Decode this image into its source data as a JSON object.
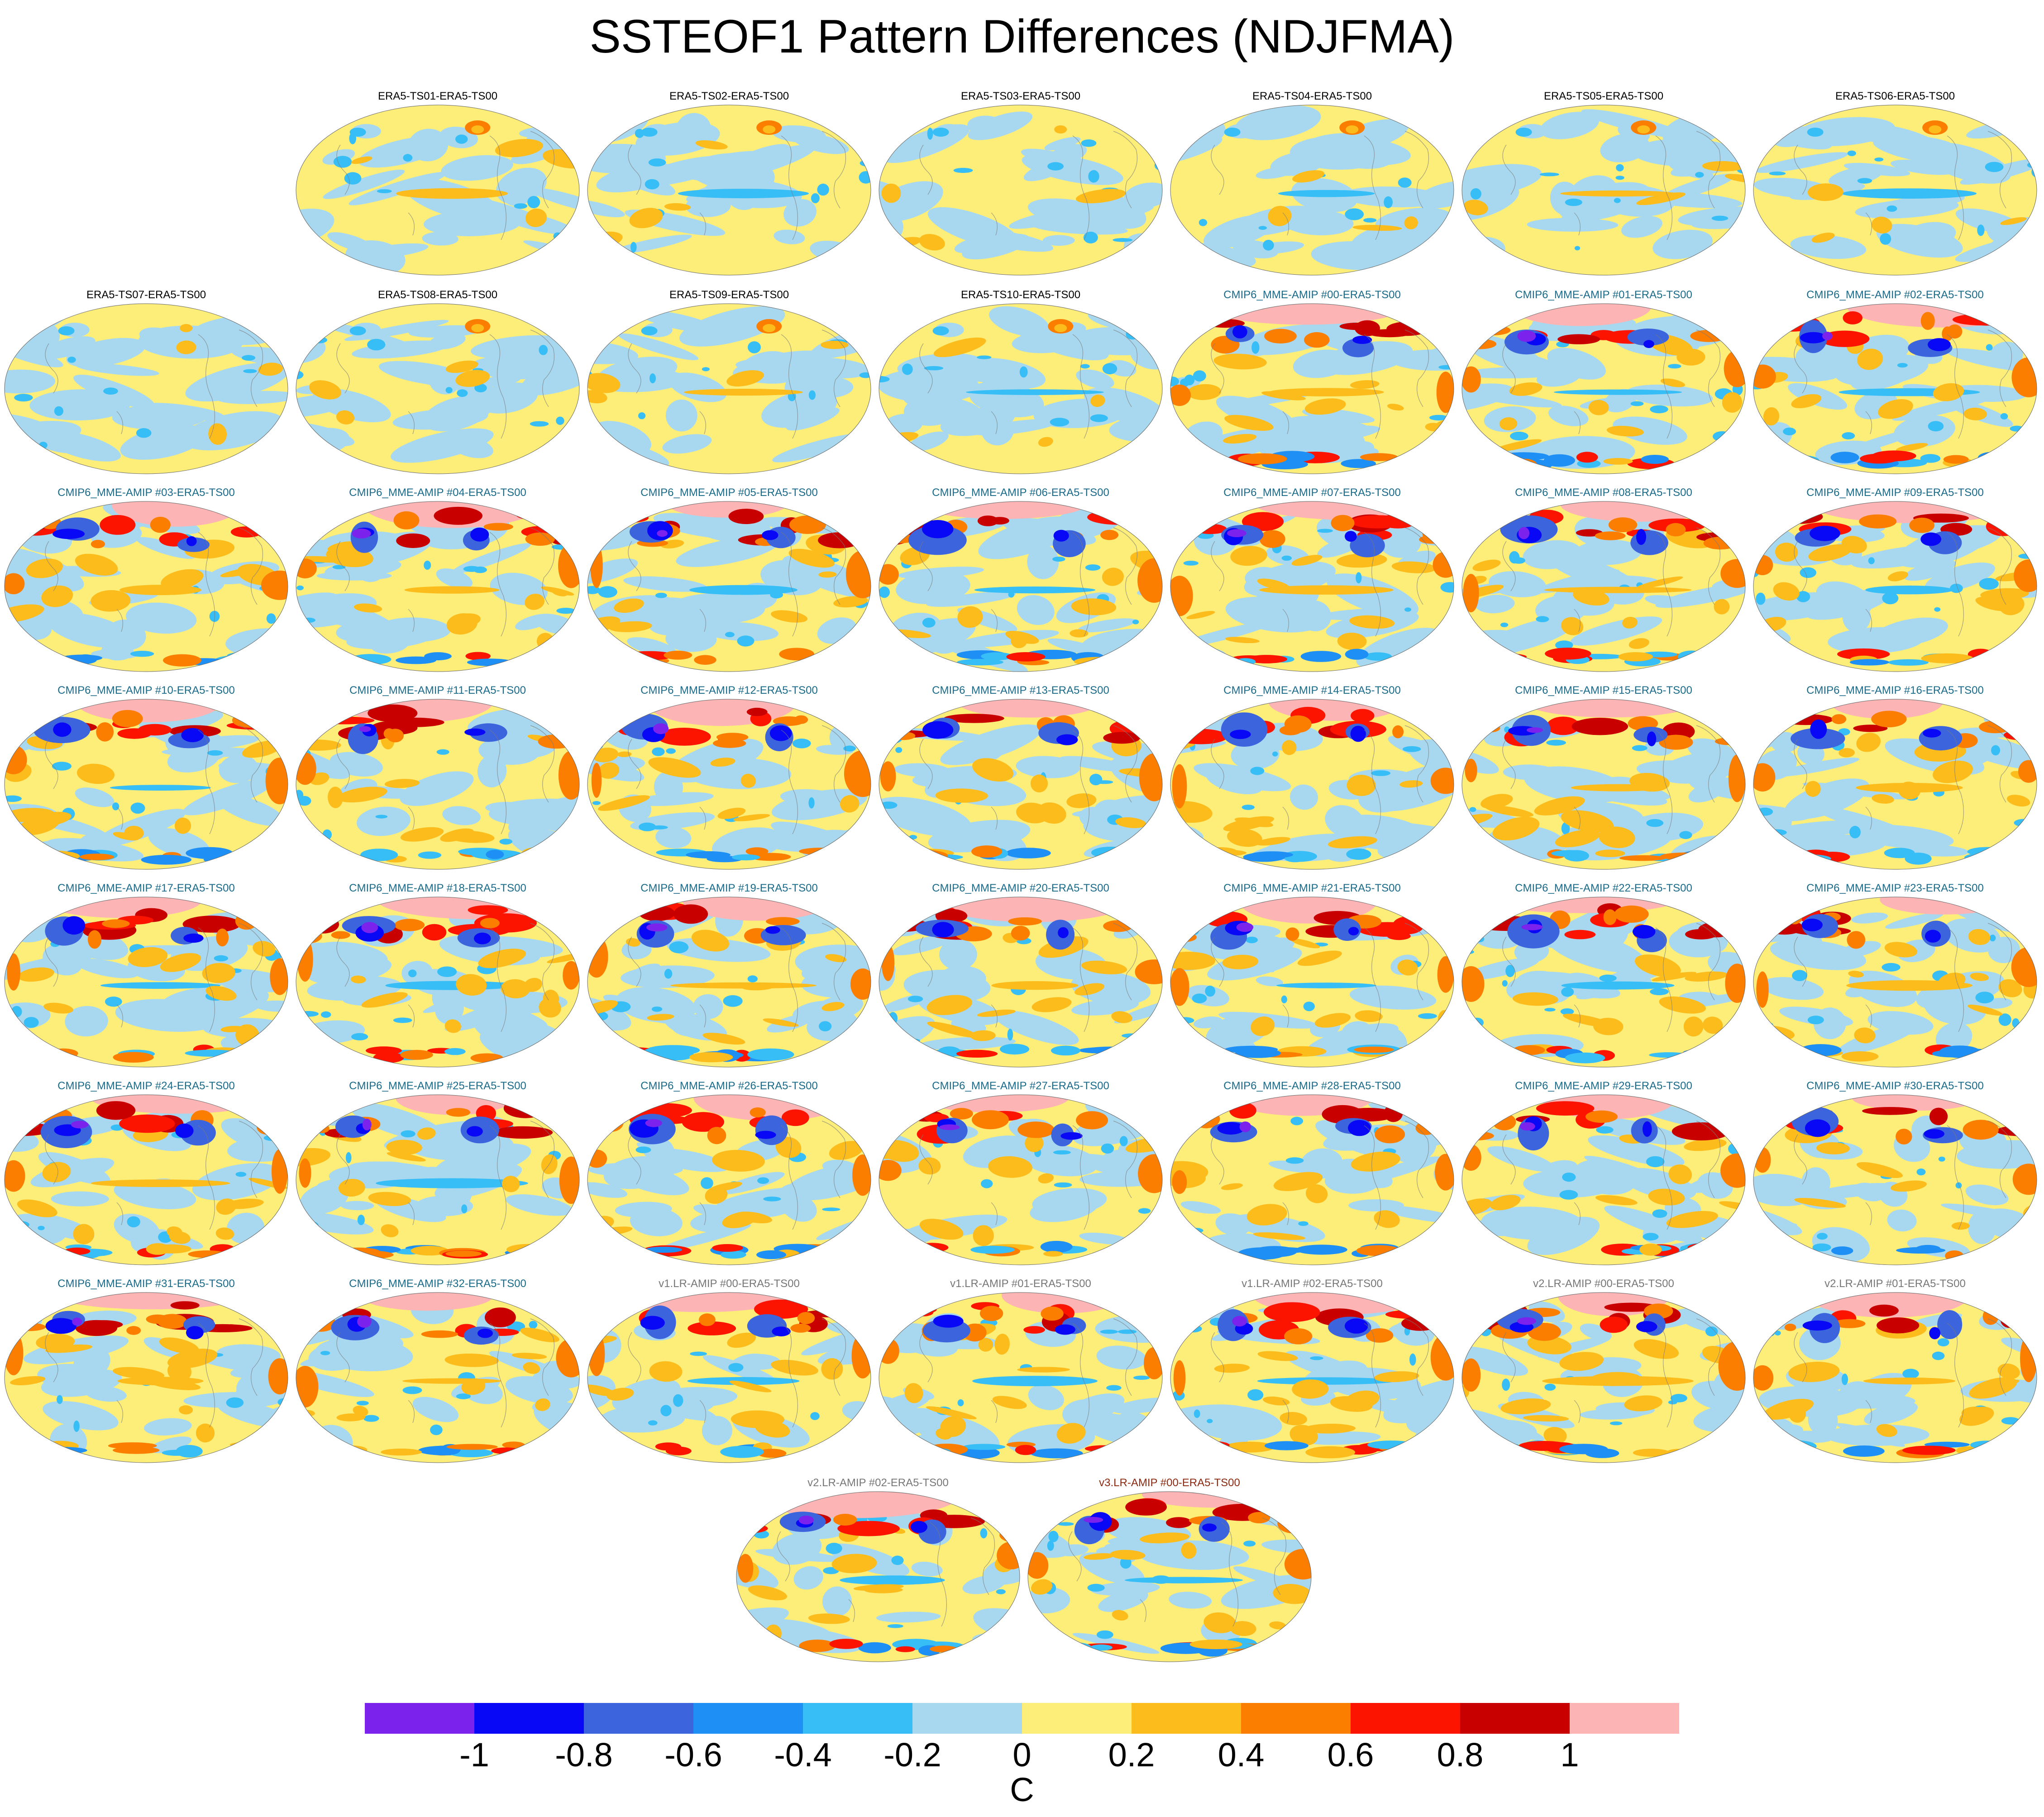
{
  "title": "SSTEOF1 Pattern Differences (NDJFMA)",
  "chart_data": {
    "type": "heatmap",
    "title": "SSTEOF1 Pattern Differences (NDJFMA)",
    "projection": "global map panels (filled contour)",
    "colorbar": {
      "units": "C",
      "levels": [
        -1,
        -0.8,
        -0.6,
        -0.4,
        -0.2,
        0,
        0.2,
        0.4,
        0.6,
        0.8,
        1
      ],
      "tick_labels": [
        "-1",
        "-0.8",
        "-0.6",
        "-0.4",
        "-0.2",
        "0",
        "0.2",
        "0.4",
        "0.6",
        "0.8",
        "1"
      ],
      "colors": [
        "#7b22ec",
        "#0808f6",
        "#3c64dc",
        "#1e90f5",
        "#38bef6",
        "#a8d8ef",
        "#fcee78",
        "#fcbc1c",
        "#fc7e00",
        "#fc1400",
        "#c80000",
        "#fcb4b4"
      ]
    },
    "panel_titles": [
      "ERA5-TS01-ERA5-TS00",
      "ERA5-TS02-ERA5-TS00",
      "ERA5-TS03-ERA5-TS00",
      "ERA5-TS04-ERA5-TS00",
      "ERA5-TS05-ERA5-TS00",
      "ERA5-TS06-ERA5-TS00",
      "ERA5-TS07-ERA5-TS00",
      "ERA5-TS08-ERA5-TS00",
      "ERA5-TS09-ERA5-TS00",
      "ERA5-TS10-ERA5-TS00",
      "CMIP6_MME-AMIP  #00-ERA5-TS00",
      "CMIP6_MME-AMIP  #01-ERA5-TS00",
      "CMIP6_MME-AMIP  #02-ERA5-TS00",
      "CMIP6_MME-AMIP  #03-ERA5-TS00",
      "CMIP6_MME-AMIP  #04-ERA5-TS00",
      "CMIP6_MME-AMIP  #05-ERA5-TS00",
      "CMIP6_MME-AMIP  #06-ERA5-TS00",
      "CMIP6_MME-AMIP  #07-ERA5-TS00",
      "CMIP6_MME-AMIP  #08-ERA5-TS00",
      "CMIP6_MME-AMIP  #09-ERA5-TS00",
      "CMIP6_MME-AMIP  #10-ERA5-TS00",
      "CMIP6_MME-AMIP  #11-ERA5-TS00",
      "CMIP6_MME-AMIP  #12-ERA5-TS00",
      "CMIP6_MME-AMIP  #13-ERA5-TS00",
      "CMIP6_MME-AMIP  #14-ERA5-TS00",
      "CMIP6_MME-AMIP  #15-ERA5-TS00",
      "CMIP6_MME-AMIP  #16-ERA5-TS00",
      "CMIP6_MME-AMIP  #17-ERA5-TS00",
      "CMIP6_MME-AMIP  #18-ERA5-TS00",
      "CMIP6_MME-AMIP  #19-ERA5-TS00",
      "CMIP6_MME-AMIP  #20-ERA5-TS00",
      "CMIP6_MME-AMIP  #21-ERA5-TS00",
      "CMIP6_MME-AMIP  #22-ERA5-TS00",
      "CMIP6_MME-AMIP  #23-ERA5-TS00",
      "CMIP6_MME-AMIP  #24-ERA5-TS00",
      "CMIP6_MME-AMIP  #25-ERA5-TS00",
      "CMIP6_MME-AMIP  #26-ERA5-TS00",
      "CMIP6_MME-AMIP  #27-ERA5-TS00",
      "CMIP6_MME-AMIP  #28-ERA5-TS00",
      "CMIP6_MME-AMIP  #29-ERA5-TS00",
      "CMIP6_MME-AMIP  #30-ERA5-TS00",
      "CMIP6_MME-AMIP  #31-ERA5-TS00",
      "CMIP6_MME-AMIP  #32-ERA5-TS00",
      "v1.LR-AMIP  #00-ERA5-TS00",
      "v1.LR-AMIP  #01-ERA5-TS00",
      "v1.LR-AMIP  #02-ERA5-TS00",
      "v2.LR-AMIP  #00-ERA5-TS00",
      "v2.LR-AMIP  #01-ERA5-TS00",
      "v2.LR-AMIP  #02-ERA5-TS00",
      "v3.LR-AMIP  #00-ERA5-TS00"
    ],
    "panel_title_colors": {
      "ERA5": "#000000",
      "CMIP6_MME-AMIP": "#1a6a8a",
      "v1.LR-AMIP": "#777777",
      "v2.LR-AMIP": "#777777",
      "v3.LR-AMIP": "#8b2a10"
    }
  }
}
